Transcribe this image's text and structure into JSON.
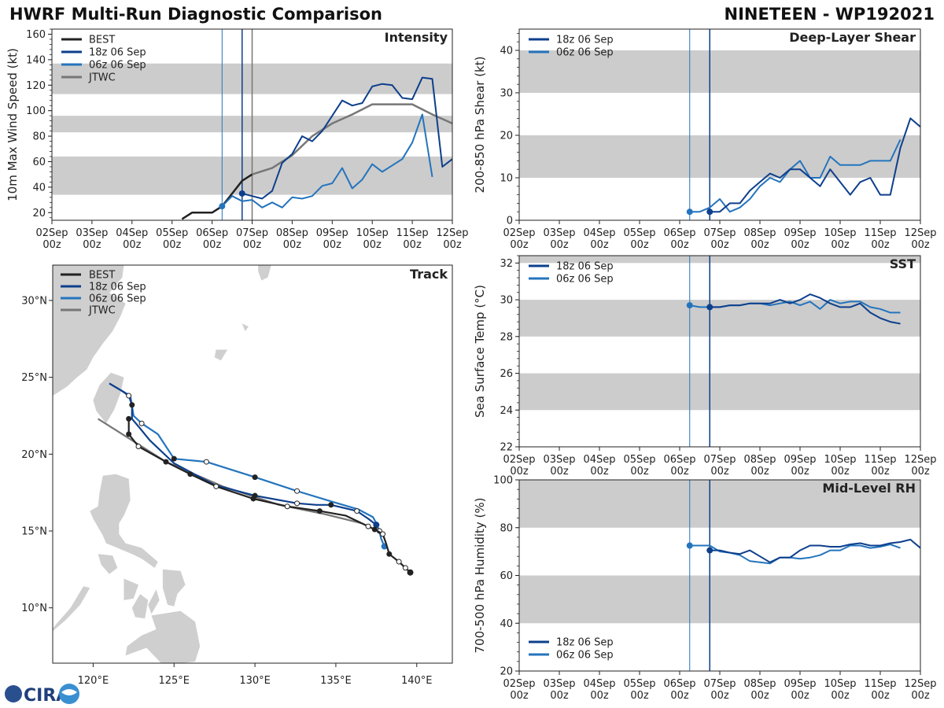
{
  "title_left": "HWRF Multi-Run Diagnostic Comparison",
  "title_right": "NINETEEN - WP192021",
  "logo_text": "CIRA",
  "colors": {
    "best": "#222222",
    "run18z": "#0d3f8c",
    "run06z": "#2474bd",
    "jtwc": "#777777",
    "band": "#cccccc",
    "land": "#cfcfcf"
  },
  "time_axis": {
    "xlim": [
      0,
      10
    ],
    "labels": [
      [
        "02Sep",
        "00z"
      ],
      [
        "03Sep",
        "00z"
      ],
      [
        "04Sep",
        "00z"
      ],
      [
        "05Sep",
        "00z"
      ],
      [
        "06Sep",
        "00z"
      ],
      [
        "07Sep",
        "00z"
      ],
      [
        "08Sep",
        "00z"
      ],
      [
        "09Sep",
        "00z"
      ],
      [
        "10Sep",
        "00z"
      ],
      [
        "11Sep",
        "00z"
      ],
      [
        "12Sep",
        "00z"
      ]
    ]
  },
  "chart_data": [
    {
      "id": "intensity",
      "type": "line",
      "title": "Intensity",
      "ylabel": "10m Max Wind Speed (kt)",
      "ylim": [
        14,
        164
      ],
      "yticks": [
        20,
        40,
        60,
        80,
        100,
        120,
        140,
        160
      ],
      "bands": [
        [
          34,
          64
        ],
        [
          83,
          96
        ],
        [
          113,
          137
        ]
      ],
      "vlines": [
        {
          "x": 4.25,
          "color": "run06z",
          "width": 1
        },
        {
          "x": 4.75,
          "color": "run18z",
          "width": 1.5
        },
        {
          "x": 5.0,
          "color": "jtwc",
          "width": 1.5
        }
      ],
      "legend": [
        {
          "label": "BEST",
          "color": "best"
        },
        {
          "label": "18z 06 Sep",
          "color": "run18z"
        },
        {
          "label": "06z 06 Sep",
          "color": "run06z"
        },
        {
          "label": "JTWC",
          "color": "jtwc"
        }
      ],
      "series": [
        {
          "name": "BEST",
          "color": "best",
          "width": 2.5,
          "x": [
            3.25,
            3.5,
            3.75,
            4.0,
            4.25,
            4.5,
            4.75,
            5.0
          ],
          "y": [
            15,
            20,
            20,
            20,
            25,
            35,
            45,
            50
          ]
        },
        {
          "name": "JTWC",
          "color": "jtwc",
          "width": 2.5,
          "x": [
            5.0,
            5.5,
            6.0,
            6.5,
            7.0,
            7.5,
            8.0,
            8.5,
            9.0,
            9.5,
            10.0
          ],
          "y": [
            50,
            55,
            65,
            80,
            90,
            97,
            105,
            105,
            105,
            97,
            90
          ]
        },
        {
          "name": "06z 06 Sep",
          "color": "run06z",
          "width": 2,
          "marker_index": 0,
          "x": [
            4.25,
            4.5,
            4.75,
            5.0,
            5.25,
            5.5,
            5.75,
            6.0,
            6.25,
            6.5,
            6.75,
            7.0,
            7.25,
            7.5,
            7.75,
            8.0,
            8.25,
            8.5,
            8.75,
            9.0,
            9.25,
            9.5
          ],
          "y": [
            25,
            33,
            29,
            30,
            24,
            28,
            24,
            32,
            31,
            33,
            41,
            43,
            55,
            39,
            46,
            58,
            52,
            57,
            62,
            75,
            97,
            48
          ]
        },
        {
          "name": "18z 06 Sep",
          "color": "run18z",
          "width": 2,
          "marker_index": 0,
          "x": [
            4.75,
            5.0,
            5.25,
            5.5,
            5.75,
            6.0,
            6.25,
            6.5,
            6.75,
            7.0,
            7.25,
            7.5,
            7.75,
            8.0,
            8.25,
            8.5,
            8.75,
            9.0,
            9.25,
            9.5,
            9.75,
            10.0
          ],
          "y": [
            35,
            33,
            31,
            37,
            59,
            66,
            80,
            76,
            84,
            96,
            108,
            104,
            106,
            119,
            121,
            120,
            110,
            109,
            126,
            125,
            56,
            62
          ]
        }
      ]
    },
    {
      "id": "shear",
      "type": "line",
      "title": "Deep-Layer Shear",
      "ylabel": "200-850 hPa Shear (kt)",
      "ylim": [
        0,
        45
      ],
      "yticks": [
        0,
        10,
        20,
        30,
        40
      ],
      "bands": [
        [
          10,
          20
        ],
        [
          30,
          40
        ]
      ],
      "vlines": [
        {
          "x": 4.25,
          "color": "run06z",
          "width": 1
        },
        {
          "x": 4.75,
          "color": "run18z",
          "width": 1.5
        }
      ],
      "legend": [
        {
          "label": "18z 06 Sep",
          "color": "run18z"
        },
        {
          "label": "06z 06 Sep",
          "color": "run06z"
        }
      ],
      "series": [
        {
          "name": "06z 06 Sep",
          "color": "run06z",
          "width": 2,
          "marker_index": 0,
          "x": [
            4.25,
            4.5,
            4.75,
            5.0,
            5.25,
            5.5,
            5.75,
            6.0,
            6.25,
            6.5,
            6.75,
            7.0,
            7.25,
            7.5,
            7.75,
            8.0,
            8.25,
            8.5,
            8.75,
            9.0,
            9.25,
            9.5
          ],
          "y": [
            2,
            2,
            3,
            5,
            2,
            3,
            5,
            8,
            10,
            9,
            12,
            14,
            10,
            10,
            15,
            13,
            13,
            13,
            14,
            14,
            14,
            19
          ]
        },
        {
          "name": "18z 06 Sep",
          "color": "run18z",
          "width": 2,
          "marker_index": 0,
          "x": [
            4.75,
            5.0,
            5.25,
            5.5,
            5.75,
            6.0,
            6.25,
            6.5,
            6.75,
            7.0,
            7.25,
            7.5,
            7.75,
            8.0,
            8.25,
            8.5,
            8.75,
            9.0,
            9.25,
            9.5,
            9.75,
            10.0
          ],
          "y": [
            2,
            2,
            4,
            4,
            7,
            9,
            11,
            10,
            12,
            12,
            10,
            8,
            12,
            9,
            6,
            9,
            10,
            6,
            6,
            17,
            24,
            22
          ]
        }
      ]
    },
    {
      "id": "sst",
      "type": "line",
      "title": "SST",
      "ylabel": "Sea Surface Temp (°C)",
      "ylim": [
        22,
        32.4
      ],
      "yticks": [
        22,
        24,
        26,
        28,
        30,
        32
      ],
      "bands": [
        [
          24,
          26
        ],
        [
          28,
          30
        ],
        [
          32,
          32.4
        ]
      ],
      "vlines": [
        {
          "x": 4.25,
          "color": "run06z",
          "width": 1
        },
        {
          "x": 4.75,
          "color": "run18z",
          "width": 1.5
        }
      ],
      "legend": [
        {
          "label": "18z 06 Sep",
          "color": "run18z"
        },
        {
          "label": "06z 06 Sep",
          "color": "run06z"
        }
      ],
      "series": [
        {
          "name": "06z 06 Sep",
          "color": "run06z",
          "width": 2,
          "marker_index": 0,
          "x": [
            4.25,
            4.5,
            4.75,
            5.0,
            5.25,
            5.5,
            5.75,
            6.0,
            6.25,
            6.5,
            6.75,
            7.0,
            7.25,
            7.5,
            7.75,
            8.0,
            8.25,
            8.5,
            8.75,
            9.0,
            9.25,
            9.5
          ],
          "y": [
            29.7,
            29.6,
            29.6,
            29.6,
            29.7,
            29.7,
            29.8,
            29.8,
            29.7,
            29.8,
            29.9,
            29.7,
            29.9,
            29.5,
            30.0,
            29.8,
            29.9,
            29.9,
            29.6,
            29.5,
            29.3,
            29.3
          ]
        },
        {
          "name": "18z 06 Sep",
          "color": "run18z",
          "width": 2,
          "marker_index": 0,
          "x": [
            4.75,
            5.0,
            5.25,
            5.5,
            5.75,
            6.0,
            6.25,
            6.5,
            6.75,
            7.0,
            7.25,
            7.5,
            7.75,
            8.0,
            8.25,
            8.5,
            8.75,
            9.0,
            9.25,
            9.5
          ],
          "y": [
            29.6,
            29.6,
            29.7,
            29.7,
            29.8,
            29.8,
            29.8,
            30.0,
            29.8,
            30.0,
            30.3,
            30.1,
            29.8,
            29.6,
            29.6,
            29.8,
            29.3,
            29.0,
            28.8,
            28.7
          ]
        }
      ]
    },
    {
      "id": "rh",
      "type": "line",
      "title": "Mid-Level RH",
      "ylabel": "700-500 hPa Humidity (%)",
      "ylim": [
        20,
        100
      ],
      "yticks": [
        20,
        40,
        60,
        80,
        100
      ],
      "bands": [
        [
          40,
          60
        ],
        [
          80,
          100
        ]
      ],
      "vlines": [
        {
          "x": 4.25,
          "color": "run06z",
          "width": 1
        },
        {
          "x": 4.75,
          "color": "run18z",
          "width": 1.5
        }
      ],
      "legend": [
        {
          "label": "18z 06 Sep",
          "color": "run18z"
        },
        {
          "label": "06z 06 Sep",
          "color": "run06z"
        }
      ],
      "series": [
        {
          "name": "06z 06 Sep",
          "color": "run06z",
          "width": 2,
          "marker_index": 0,
          "x": [
            4.25,
            4.5,
            4.75,
            5.0,
            5.25,
            5.5,
            5.75,
            6.0,
            6.25,
            6.5,
            6.75,
            7.0,
            7.25,
            7.5,
            7.75,
            8.0,
            8.25,
            8.5,
            8.75,
            9.0,
            9.25,
            9.5
          ],
          "y": [
            72.5,
            72.5,
            72.5,
            70,
            69.5,
            68.5,
            66,
            65.5,
            65,
            67.5,
            67.5,
            67,
            67.5,
            68.5,
            70.5,
            70.5,
            72.5,
            72.5,
            71.5,
            72,
            73,
            71.5
          ]
        },
        {
          "name": "18z 06 Sep",
          "color": "run18z",
          "width": 2,
          "marker_index": 0,
          "x": [
            4.75,
            5.0,
            5.25,
            5.5,
            5.75,
            6.0,
            6.25,
            6.5,
            6.75,
            7.0,
            7.25,
            7.5,
            7.75,
            8.0,
            8.25,
            8.5,
            8.75,
            9.0,
            9.25,
            9.5,
            9.75,
            10.0
          ],
          "y": [
            70.5,
            70.5,
            69.5,
            69,
            70.5,
            68,
            65.5,
            67.5,
            67.5,
            70.5,
            72.5,
            72.5,
            72,
            72,
            73,
            73.5,
            72.5,
            72.5,
            73.5,
            74,
            75,
            71.5
          ]
        }
      ]
    },
    {
      "id": "track",
      "type": "map",
      "title": "Track",
      "xlim": [
        117.5,
        142.2
      ],
      "ylim": [
        6.4,
        32.3
      ],
      "xticks": [
        120,
        125,
        130,
        135,
        140
      ],
      "xtick_labels": [
        "120°E",
        "125°E",
        "130°E",
        "135°E",
        "140°E"
      ],
      "yticks": [
        10,
        15,
        20,
        25,
        30
      ],
      "ytick_labels": [
        "10°N",
        "15°N",
        "20°N",
        "25°N",
        "30°N"
      ],
      "legend": [
        {
          "label": "BEST",
          "color": "best"
        },
        {
          "label": "18z 06 Sep",
          "color": "run18z"
        },
        {
          "label": "06z 06 Sep",
          "color": "run06z"
        },
        {
          "label": "JTWC",
          "color": "jtwc"
        }
      ],
      "series": [
        {
          "name": "JTWC",
          "color": "jtwc",
          "width": 2.2,
          "lon": [
            136.6,
            134.3,
            131.5,
            128.0,
            124.5,
            120.3
          ],
          "lat": [
            15.5,
            16.1,
            16.7,
            17.9,
            19.5,
            22.3
          ]
        },
        {
          "name": "06z 06 Sep",
          "color": "run06z",
          "width": 2.2,
          "lon": [
            138.0,
            137.8,
            137.7,
            137.5,
            137.3,
            136.4,
            134.8,
            132.6,
            130.0,
            127.0,
            125.0,
            124.0,
            123.0,
            122.5,
            122.3,
            121.0
          ],
          "lat": [
            14.0,
            14.5,
            15.0,
            15.5,
            15.9,
            16.4,
            16.9,
            17.6,
            18.5,
            19.5,
            19.7,
            21.3,
            22.0,
            22.5,
            23.8,
            24.6
          ],
          "filled_index": 0,
          "open_indices": [
            2,
            7,
            9,
            12
          ],
          "solid_indices": [
            8,
            10
          ]
        },
        {
          "name": "18z 06 Sep",
          "color": "run18z",
          "width": 2.2,
          "lon": [
            137.5,
            137.0,
            136.3,
            134.7,
            133.8,
            132.6,
            130.0,
            127.5,
            125.0,
            123.5,
            122.8,
            122.4,
            122.4,
            122.2,
            121.8,
            121.0
          ],
          "lat": [
            15.4,
            15.8,
            16.3,
            16.7,
            16.7,
            16.8,
            17.3,
            18.0,
            19.4,
            20.9,
            21.8,
            22.3,
            23.2,
            23.8,
            24.1,
            24.6
          ],
          "filled_index": 0,
          "open_indices": [
            2,
            5,
            13
          ],
          "solid_indices": [
            3,
            6,
            12
          ]
        },
        {
          "name": "BEST",
          "color": "best",
          "width": 2.2,
          "lon": [
            139.6,
            139.3,
            138.9,
            138.3,
            138.1,
            137.9,
            137.4,
            137.0,
            135.6,
            134.0,
            132.0,
            129.9,
            127.6,
            126.0,
            124.5,
            122.8,
            122.2,
            122.2
          ],
          "lat": [
            12.3,
            12.6,
            13.0,
            13.5,
            14.2,
            14.8,
            15.1,
            15.3,
            16.0,
            16.3,
            16.6,
            17.1,
            17.9,
            18.7,
            19.5,
            20.5,
            21.3,
            22.3
          ],
          "filled_index": 0,
          "open_indices": [
            1,
            2,
            5,
            7,
            10,
            12,
            15
          ],
          "solid_indices": [
            3,
            6,
            9,
            11,
            13,
            14,
            16,
            17
          ]
        }
      ]
    }
  ]
}
